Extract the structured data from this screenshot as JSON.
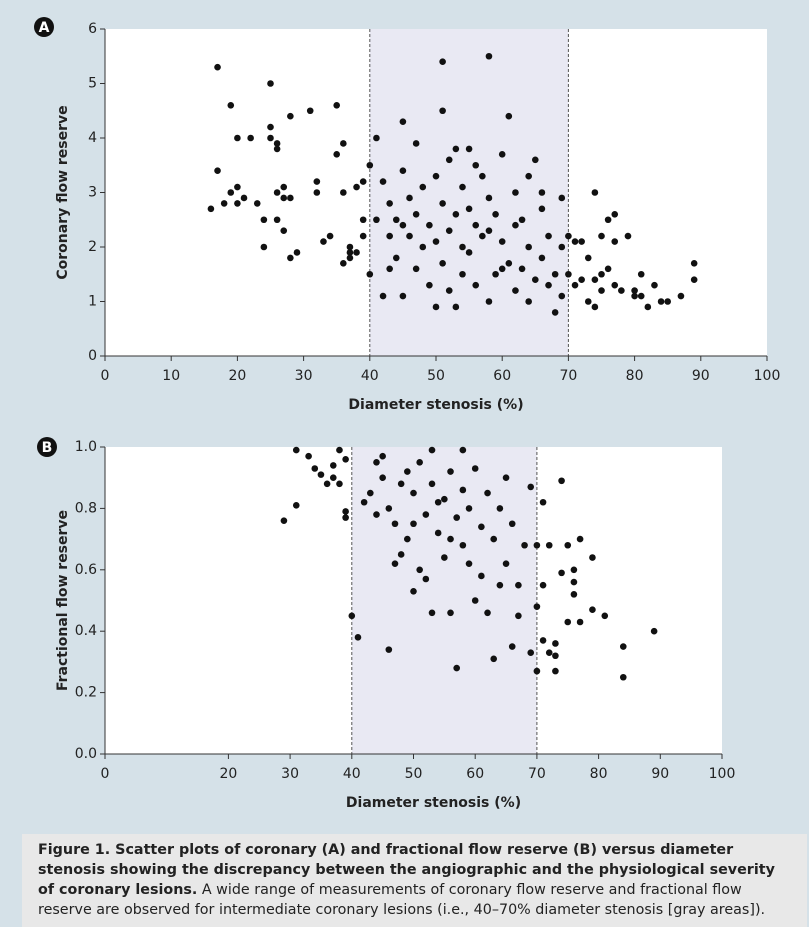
{
  "chart_data": [
    {
      "type": "scatter",
      "label": "A",
      "xlabel": "Diameter stenosis (%)",
      "ylabel": "Coronary flow reserve",
      "xlim": [
        0,
        100
      ],
      "ylim": [
        0,
        6
      ],
      "xticks": [
        0,
        10,
        20,
        30,
        40,
        50,
        60,
        70,
        80,
        90,
        100
      ],
      "yticks": [
        0,
        1,
        2,
        3,
        4,
        5,
        6
      ],
      "shade": [
        40,
        70
      ],
      "shade_color": "#e9e9f3",
      "color": "#111111",
      "x": [
        16,
        17,
        17,
        18,
        19,
        19,
        20,
        20,
        20,
        21,
        22,
        23,
        24,
        24,
        25,
        25,
        25,
        26,
        26,
        26,
        26,
        27,
        27,
        27,
        28,
        28,
        28,
        29,
        31,
        32,
        32,
        33,
        34,
        35,
        35,
        36,
        36,
        37,
        37,
        38,
        39,
        39,
        39,
        38,
        36,
        37,
        40,
        40,
        41,
        41,
        42,
        42,
        43,
        43,
        44,
        44,
        45,
        45,
        45,
        46,
        46,
        47,
        47,
        48,
        48,
        49,
        49,
        50,
        50,
        50,
        51,
        51,
        51,
        51,
        52,
        52,
        52,
        53,
        53,
        53,
        54,
        54,
        54,
        55,
        55,
        56,
        56,
        56,
        57,
        57,
        58,
        58,
        58,
        59,
        59,
        60,
        60,
        61,
        61,
        62,
        62,
        62,
        63,
        63,
        64,
        64,
        64,
        65,
        65,
        66,
        66,
        67,
        67,
        68,
        68,
        69,
        69,
        69,
        70,
        45,
        47,
        55,
        58,
        60,
        43,
        66,
        70,
        71,
        71,
        72,
        72,
        73,
        73,
        74,
        74,
        74,
        75,
        75,
        75,
        76,
        76,
        77,
        77,
        77,
        78,
        79,
        80,
        80,
        81,
        81,
        82,
        83,
        84,
        85,
        87,
        89,
        89
      ],
      "values": [
        2.7,
        5.3,
        3.4,
        2.8,
        4.6,
        3,
        3.1,
        4,
        2.8,
        2.9,
        4,
        2.8,
        2,
        2.5,
        5,
        4.2,
        4,
        3.8,
        3.9,
        3,
        2.5,
        3.1,
        2.3,
        2.9,
        4.4,
        1.8,
        2.9,
        1.9,
        4.5,
        3.2,
        3,
        2.1,
        2.2,
        4.6,
        3.7,
        3.9,
        3,
        1.8,
        2,
        3.1,
        3.2,
        2.5,
        2.2,
        1.9,
        1.7,
        1.9,
        1.5,
        3.5,
        4,
        2.5,
        3.2,
        1.1,
        2.2,
        2.8,
        1.8,
        2.5,
        3.4,
        1.1,
        4.3,
        2.9,
        2.2,
        1.6,
        2.6,
        3.1,
        2,
        2.4,
        1.3,
        3.3,
        2.1,
        0.9,
        5.4,
        4.5,
        2.8,
        1.7,
        3.6,
        2.3,
        1.2,
        3.8,
        2.6,
        0.9,
        3.1,
        2,
        1.5,
        2.7,
        1.9,
        3.5,
        2.4,
        1.3,
        3.3,
        2.2,
        5.5,
        2.9,
        1,
        2.6,
        1.5,
        3.7,
        2.1,
        4.4,
        1.7,
        3,
        2.4,
        1.2,
        2.5,
        1.6,
        3.3,
        2,
        1,
        3.6,
        1.4,
        2.7,
        1.8,
        1.3,
        2.2,
        0.8,
        1.5,
        2.9,
        1.1,
        2,
        2.2,
        2.4,
        3.9,
        3.8,
        2.3,
        1.6,
        1.6,
        3,
        1.5,
        2.1,
        1.3,
        2.1,
        1.4,
        1.8,
        1,
        3,
        1.4,
        0.9,
        2.2,
        1.5,
        1.2,
        1.6,
        2.5,
        2.6,
        2.1,
        1.3,
        1.2,
        2.2,
        1.1,
        1.2,
        1.5,
        1.1,
        0.9,
        1.3,
        1,
        1,
        1.1,
        1.7,
        1.4
      ]
    },
    {
      "type": "scatter",
      "label": "B",
      "xlabel": "Diameter stenosis (%)",
      "ylabel": "Fractional flow reserve",
      "xlim": [
        0,
        100
      ],
      "ylim": [
        0,
        1
      ],
      "xticks": [
        0,
        20,
        30,
        40,
        50,
        60,
        70,
        80,
        90,
        100
      ],
      "yticks": [
        {
          "value": 0,
          "label": "0.0"
        },
        0.2,
        0.4,
        0.6,
        0.8,
        {
          "value": 1,
          "label": "1.0"
        }
      ],
      "shade": [
        40,
        70
      ],
      "shade_color": "#e9e9f3",
      "color": "#111111",
      "x": [
        29,
        31,
        31,
        33,
        34,
        35,
        36,
        37,
        37,
        38,
        38,
        39,
        39,
        39,
        40,
        41,
        43,
        44,
        45,
        46,
        46,
        47,
        48,
        48,
        49,
        50,
        50,
        51,
        51,
        52,
        52,
        53,
        53,
        54,
        55,
        55,
        56,
        56,
        57,
        57,
        58,
        58,
        59,
        59,
        60,
        60,
        61,
        61,
        62,
        62,
        63,
        63,
        64,
        65,
        65,
        66,
        66,
        67,
        67,
        68,
        69,
        69,
        70,
        45,
        53,
        58,
        49,
        54,
        42,
        44,
        47,
        50,
        56,
        64,
        70,
        70,
        71,
        71,
        71,
        72,
        72,
        73,
        73,
        73,
        74,
        74,
        75,
        75,
        76,
        76,
        76,
        77,
        77,
        79,
        79,
        81,
        84,
        84,
        89
      ],
      "values": [
        0.76,
        0.99,
        0.81,
        0.97,
        0.93,
        0.91,
        0.88,
        0.9,
        0.94,
        0.99,
        0.88,
        0.79,
        0.77,
        0.96,
        0.45,
        0.38,
        0.85,
        0.95,
        0.9,
        0.34,
        0.8,
        0.75,
        0.88,
        0.65,
        0.7,
        0.53,
        0.85,
        0.6,
        0.95,
        0.78,
        0.57,
        0.46,
        0.88,
        0.72,
        0.83,
        0.64,
        0.46,
        0.92,
        0.77,
        0.28,
        0.68,
        0.86,
        0.62,
        0.8,
        0.93,
        0.5,
        0.74,
        0.58,
        0.85,
        0.46,
        0.31,
        0.7,
        0.8,
        0.62,
        0.9,
        0.35,
        0.75,
        0.55,
        0.45,
        0.68,
        0.33,
        0.87,
        0.68,
        0.97,
        0.99,
        0.99,
        0.92,
        0.82,
        0.82,
        0.78,
        0.62,
        0.75,
        0.7,
        0.55,
        0.27,
        0.48,
        0.37,
        0.55,
        0.82,
        0.33,
        0.68,
        0.36,
        0.27,
        0.32,
        0.89,
        0.59,
        0.43,
        0.68,
        0.52,
        0.6,
        0.56,
        0.43,
        0.7,
        0.64,
        0.47,
        0.45,
        0.25,
        0.35,
        0.4
      ]
    }
  ],
  "caption": {
    "bold": "Figure 1. Scatter plots of coronary (A) and fractional flow reserve (B) versus diameter stenosis showing the discrepancy between the angiographic and the physiological severity of coronary lesions.",
    "text": "A wide range of measurements of coronary flow reserve and fractional flow reserve are observed for intermediate coronary lesions (i.e., 40–70% diameter stenosis [gray areas])."
  }
}
